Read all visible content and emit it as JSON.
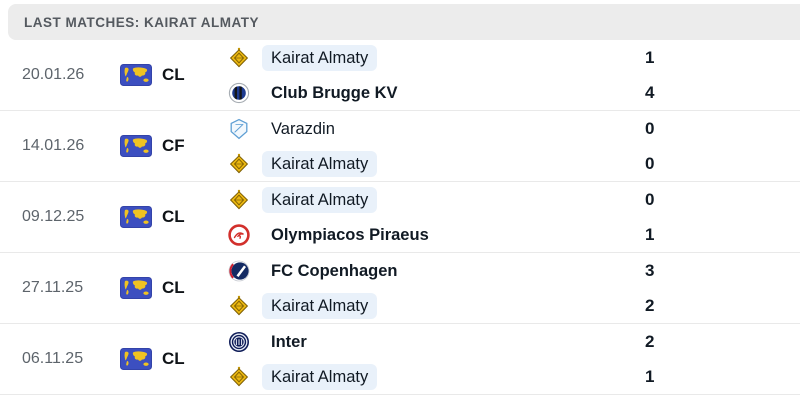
{
  "header": {
    "title": "LAST MATCHES: KAIRAT ALMATY"
  },
  "colors": {
    "header_bg": "#ececec",
    "highlight_pill": "#e9f1fa",
    "flag_blue": "#3c4fc0",
    "flag_yellow": "#f0c322",
    "kairat_gold": "#eab711"
  },
  "matches": [
    {
      "date": "20.01.26",
      "competition": "CL",
      "home": {
        "name": "Kairat Almaty",
        "score": "1",
        "bold": false,
        "highlight": true,
        "logo": "kairat"
      },
      "away": {
        "name": "Club Brugge KV",
        "score": "4",
        "bold": true,
        "highlight": false,
        "logo": "brugge"
      }
    },
    {
      "date": "14.01.26",
      "competition": "CF",
      "home": {
        "name": "Varazdin",
        "score": "0",
        "bold": false,
        "highlight": false,
        "logo": "varazdin"
      },
      "away": {
        "name": "Kairat Almaty",
        "score": "0",
        "bold": false,
        "highlight": true,
        "logo": "kairat"
      }
    },
    {
      "date": "09.12.25",
      "competition": "CL",
      "home": {
        "name": "Kairat Almaty",
        "score": "0",
        "bold": false,
        "highlight": true,
        "logo": "kairat"
      },
      "away": {
        "name": "Olympiacos Piraeus",
        "score": "1",
        "bold": true,
        "highlight": false,
        "logo": "olympiacos"
      }
    },
    {
      "date": "27.11.25",
      "competition": "CL",
      "home": {
        "name": "FC Copenhagen",
        "score": "3",
        "bold": true,
        "highlight": false,
        "logo": "copenhagen"
      },
      "away": {
        "name": "Kairat Almaty",
        "score": "2",
        "bold": false,
        "highlight": true,
        "logo": "kairat"
      }
    },
    {
      "date": "06.11.25",
      "competition": "CL",
      "home": {
        "name": "Inter",
        "score": "2",
        "bold": true,
        "highlight": false,
        "logo": "inter"
      },
      "away": {
        "name": "Kairat Almaty",
        "score": "1",
        "bold": false,
        "highlight": true,
        "logo": "kairat"
      }
    }
  ]
}
